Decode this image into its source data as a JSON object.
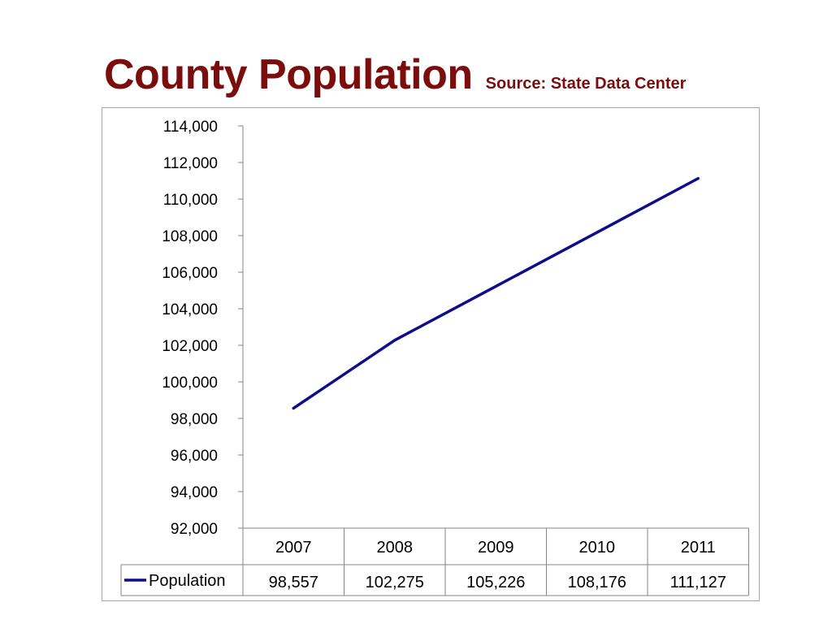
{
  "title": "County Population",
  "subtitle": "Source: State Data Center",
  "colors": {
    "title": "#7b0d0d",
    "series": "#0d0d8c",
    "axis": "#868686",
    "frame": "#a6a6a6"
  },
  "chart_data": {
    "type": "line",
    "title": "County Population",
    "subtitle": "Source: State Data Center",
    "categories": [
      "2007",
      "2008",
      "2009",
      "2010",
      "2011"
    ],
    "series": [
      {
        "name": "Population",
        "values": [
          98557,
          102275,
          105226,
          108176,
          111127
        ],
        "value_labels": [
          "98,557",
          "102,275",
          "105,226",
          "108,176",
          "111,127"
        ]
      }
    ],
    "ylim": [
      92000,
      114000
    ],
    "yticks": [
      92000,
      94000,
      96000,
      98000,
      100000,
      102000,
      104000,
      106000,
      108000,
      110000,
      112000,
      114000
    ],
    "ytick_labels": [
      "92,000",
      "94,000",
      "96,000",
      "98,000",
      "100,000",
      "102,000",
      "104,000",
      "106,000",
      "108,000",
      "110,000",
      "112,000",
      "114,000"
    ],
    "grid": false,
    "legend": "data-table",
    "data_table": true
  }
}
